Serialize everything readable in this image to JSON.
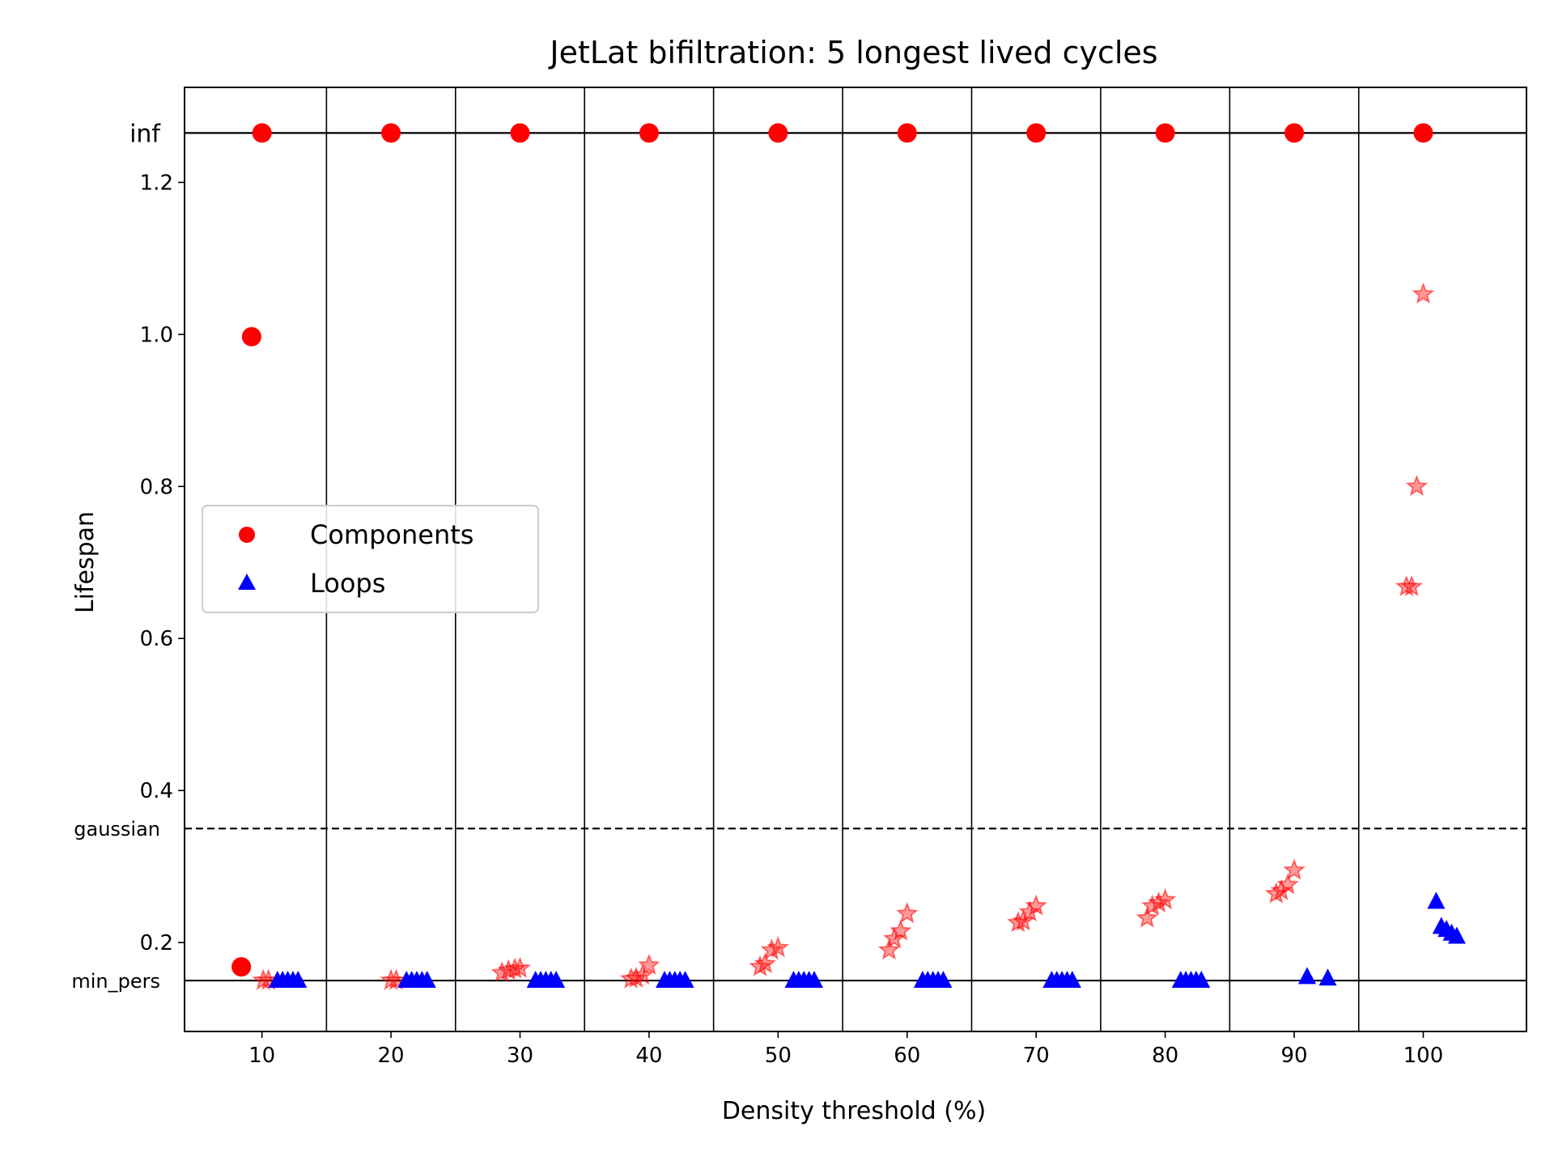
{
  "chart_data": {
    "type": "scatter",
    "title": "JetLat bifiltration: 5 longest lived cycles",
    "xlabel": "Density threshold (%)",
    "ylabel": "Lifespan",
    "xlim": [
      4,
      108
    ],
    "ylim": [
      0.083,
      1.325
    ],
    "x_ticks": [
      10,
      20,
      30,
      40,
      50,
      60,
      70,
      80,
      90,
      100
    ],
    "x_tick_labels": [
      "10",
      "20",
      "30",
      "40",
      "50",
      "60",
      "70",
      "80",
      "90",
      "100"
    ],
    "y_ticks": [
      0.2,
      0.4,
      0.6,
      0.8,
      1.0,
      1.2
    ],
    "y_tick_labels": [
      "0.2",
      "0.4",
      "0.6",
      "0.8",
      "1.0",
      "1.2"
    ],
    "inf_value": 1.265,
    "inf_label": "inf",
    "gaussian_value": 0.35,
    "gaussian_label": "gaussian",
    "min_pers_value": 0.15,
    "min_pers_label": "min_pers",
    "separators": [
      15,
      25,
      35,
      45,
      55,
      65,
      75,
      85,
      95
    ],
    "legend": {
      "position": "center-left",
      "entries": [
        "Components",
        "Loops"
      ]
    },
    "series": [
      {
        "name": "Components",
        "marker": "circle",
        "color": "#ff0000",
        "points": [
          {
            "x": 10,
            "y": 1.265
          },
          {
            "x": 20,
            "y": 1.265
          },
          {
            "x": 30,
            "y": 1.265
          },
          {
            "x": 40,
            "y": 1.265
          },
          {
            "x": 50,
            "y": 1.265
          },
          {
            "x": 60,
            "y": 1.265
          },
          {
            "x": 70,
            "y": 1.265
          },
          {
            "x": 80,
            "y": 1.265
          },
          {
            "x": 90,
            "y": 1.265
          },
          {
            "x": 100,
            "y": 1.265
          },
          {
            "x": 9.2,
            "y": 0.997
          },
          {
            "x": 8.4,
            "y": 0.168
          }
        ]
      },
      {
        "name": "Loops",
        "marker": "triangle",
        "color": "#0000ff",
        "points": [
          {
            "x": 11.2,
            "y": 0.15
          },
          {
            "x": 11.6,
            "y": 0.15
          },
          {
            "x": 12.0,
            "y": 0.15
          },
          {
            "x": 12.4,
            "y": 0.15
          },
          {
            "x": 12.8,
            "y": 0.15
          },
          {
            "x": 21.2,
            "y": 0.15
          },
          {
            "x": 21.6,
            "y": 0.15
          },
          {
            "x": 22.0,
            "y": 0.15
          },
          {
            "x": 22.4,
            "y": 0.15
          },
          {
            "x": 22.8,
            "y": 0.15
          },
          {
            "x": 31.2,
            "y": 0.15
          },
          {
            "x": 31.6,
            "y": 0.15
          },
          {
            "x": 32.0,
            "y": 0.15
          },
          {
            "x": 32.4,
            "y": 0.15
          },
          {
            "x": 32.8,
            "y": 0.15
          },
          {
            "x": 41.2,
            "y": 0.15
          },
          {
            "x": 41.6,
            "y": 0.15
          },
          {
            "x": 42.0,
            "y": 0.15
          },
          {
            "x": 42.4,
            "y": 0.15
          },
          {
            "x": 42.8,
            "y": 0.15
          },
          {
            "x": 51.2,
            "y": 0.15
          },
          {
            "x": 51.6,
            "y": 0.15
          },
          {
            "x": 52.0,
            "y": 0.15
          },
          {
            "x": 52.4,
            "y": 0.15
          },
          {
            "x": 52.8,
            "y": 0.15
          },
          {
            "x": 61.2,
            "y": 0.15
          },
          {
            "x": 61.6,
            "y": 0.15
          },
          {
            "x": 62.0,
            "y": 0.15
          },
          {
            "x": 62.4,
            "y": 0.15
          },
          {
            "x": 62.8,
            "y": 0.15
          },
          {
            "x": 71.2,
            "y": 0.15
          },
          {
            "x": 71.6,
            "y": 0.15
          },
          {
            "x": 72.0,
            "y": 0.15
          },
          {
            "x": 72.4,
            "y": 0.15
          },
          {
            "x": 72.8,
            "y": 0.15
          },
          {
            "x": 81.2,
            "y": 0.15
          },
          {
            "x": 81.6,
            "y": 0.15
          },
          {
            "x": 82.0,
            "y": 0.15
          },
          {
            "x": 82.4,
            "y": 0.15
          },
          {
            "x": 82.8,
            "y": 0.15
          },
          {
            "x": 91.0,
            "y": 0.155
          },
          {
            "x": 92.6,
            "y": 0.153
          },
          {
            "x": 101.0,
            "y": 0.254
          },
          {
            "x": 101.4,
            "y": 0.221
          },
          {
            "x": 101.8,
            "y": 0.217
          },
          {
            "x": 102.2,
            "y": 0.212
          },
          {
            "x": 102.6,
            "y": 0.208
          }
        ]
      },
      {
        "name": "Stars",
        "marker": "star",
        "color": "#ff0000",
        "points": [
          {
            "x": 10.1,
            "y": 0.15
          },
          {
            "x": 10.5,
            "y": 0.15
          },
          {
            "x": 20.0,
            "y": 0.15
          },
          {
            "x": 20.4,
            "y": 0.15
          },
          {
            "x": 28.6,
            "y": 0.16
          },
          {
            "x": 29.1,
            "y": 0.163
          },
          {
            "x": 29.6,
            "y": 0.165
          },
          {
            "x": 30.0,
            "y": 0.166
          },
          {
            "x": 38.6,
            "y": 0.152
          },
          {
            "x": 39.0,
            "y": 0.153
          },
          {
            "x": 39.5,
            "y": 0.157
          },
          {
            "x": 40.0,
            "y": 0.17
          },
          {
            "x": 48.6,
            "y": 0.168
          },
          {
            "x": 49.0,
            "y": 0.172
          },
          {
            "x": 49.5,
            "y": 0.19
          },
          {
            "x": 50.0,
            "y": 0.193
          },
          {
            "x": 58.6,
            "y": 0.19
          },
          {
            "x": 59.0,
            "y": 0.205
          },
          {
            "x": 59.5,
            "y": 0.215
          },
          {
            "x": 60.0,
            "y": 0.238
          },
          {
            "x": 68.6,
            "y": 0.226
          },
          {
            "x": 69.0,
            "y": 0.228
          },
          {
            "x": 69.5,
            "y": 0.24
          },
          {
            "x": 70.0,
            "y": 0.248
          },
          {
            "x": 78.6,
            "y": 0.232
          },
          {
            "x": 79.0,
            "y": 0.248
          },
          {
            "x": 79.5,
            "y": 0.252
          },
          {
            "x": 80.0,
            "y": 0.256
          },
          {
            "x": 88.6,
            "y": 0.264
          },
          {
            "x": 89.0,
            "y": 0.268
          },
          {
            "x": 89.5,
            "y": 0.276
          },
          {
            "x": 90.0,
            "y": 0.295
          },
          {
            "x": 98.7,
            "y": 0.668
          },
          {
            "x": 99.1,
            "y": 0.668
          },
          {
            "x": 99.5,
            "y": 0.8
          },
          {
            "x": 100.0,
            "y": 1.053
          }
        ]
      }
    ]
  }
}
